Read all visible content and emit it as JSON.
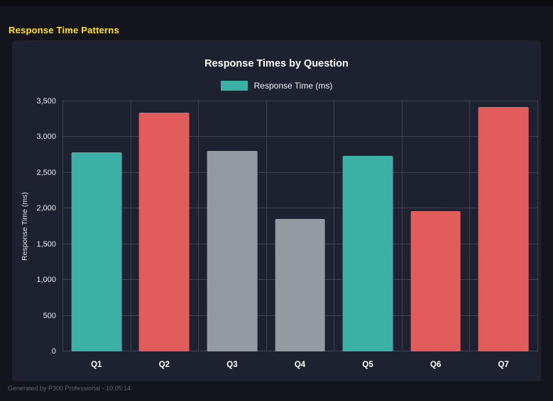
{
  "page": {
    "title": "Response Time Patterns",
    "footer": "Generated by P300 Professional - 10:05:14"
  },
  "chart_data": {
    "type": "bar",
    "title": "Response Times by Question",
    "legend_label": "Response Time (ms)",
    "legend_color": "#3bb0a5",
    "legend_position": "top",
    "categories": [
      "Q1",
      "Q2",
      "Q3",
      "Q4",
      "Q5",
      "Q6",
      "Q7"
    ],
    "values": [
      2790,
      3340,
      2810,
      1850,
      2740,
      1960,
      3420
    ],
    "bar_colors": [
      "#3bb0a5",
      "#e25c5c",
      "#9599a2",
      "#9599a2",
      "#3bb0a5",
      "#e25c5c",
      "#e25c5c"
    ],
    "xlabel": "",
    "ylabel": "Response Time (ms)",
    "ylim": [
      0,
      3500
    ],
    "yticks": [
      0,
      500,
      1000,
      1500,
      2000,
      2500,
      3000,
      3500
    ],
    "ytick_labels": [
      "0",
      "500",
      "1,000",
      "1,500",
      "2,000",
      "2,500",
      "3,000",
      "3,500"
    ],
    "grid": true
  }
}
